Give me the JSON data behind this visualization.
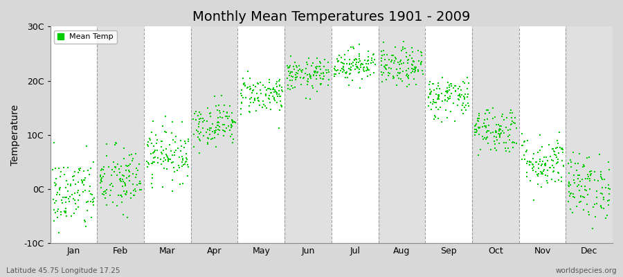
{
  "title": "Monthly Mean Temperatures 1901 - 2009",
  "ylabel": "Temperature",
  "xlabel_bottom_left": "Latitude 45.75 Longitude 17.25",
  "xlabel_bottom_right": "worldspecies.org",
  "yticks": [
    -10,
    0,
    10,
    20,
    30
  ],
  "ytick_labels": [
    "-10C",
    "0C",
    "10C",
    "20C",
    "30C"
  ],
  "months": [
    "Jan",
    "Feb",
    "Mar",
    "Apr",
    "May",
    "Jun",
    "Jul",
    "Aug",
    "Sep",
    "Oct",
    "Nov",
    "Dec"
  ],
  "monthly_means": [
    -1.0,
    1.5,
    6.5,
    12.0,
    17.5,
    21.0,
    23.0,
    22.5,
    17.0,
    11.0,
    5.0,
    0.5
  ],
  "monthly_stds": [
    3.5,
    3.2,
    2.5,
    2.0,
    1.8,
    1.5,
    1.5,
    1.8,
    2.0,
    2.2,
    2.5,
    3.0
  ],
  "n_years": 109,
  "dot_color": "#00cc00",
  "dot_size": 3,
  "fig_bg_color": "#d8d8d8",
  "plot_bg_color": "#e8e8e8",
  "band_white": "#ffffff",
  "band_gray": "#e0e0e0",
  "legend_color": "#00cc00",
  "title_fontsize": 14,
  "axis_label_fontsize": 10,
  "tick_fontsize": 9,
  "seed": 42
}
